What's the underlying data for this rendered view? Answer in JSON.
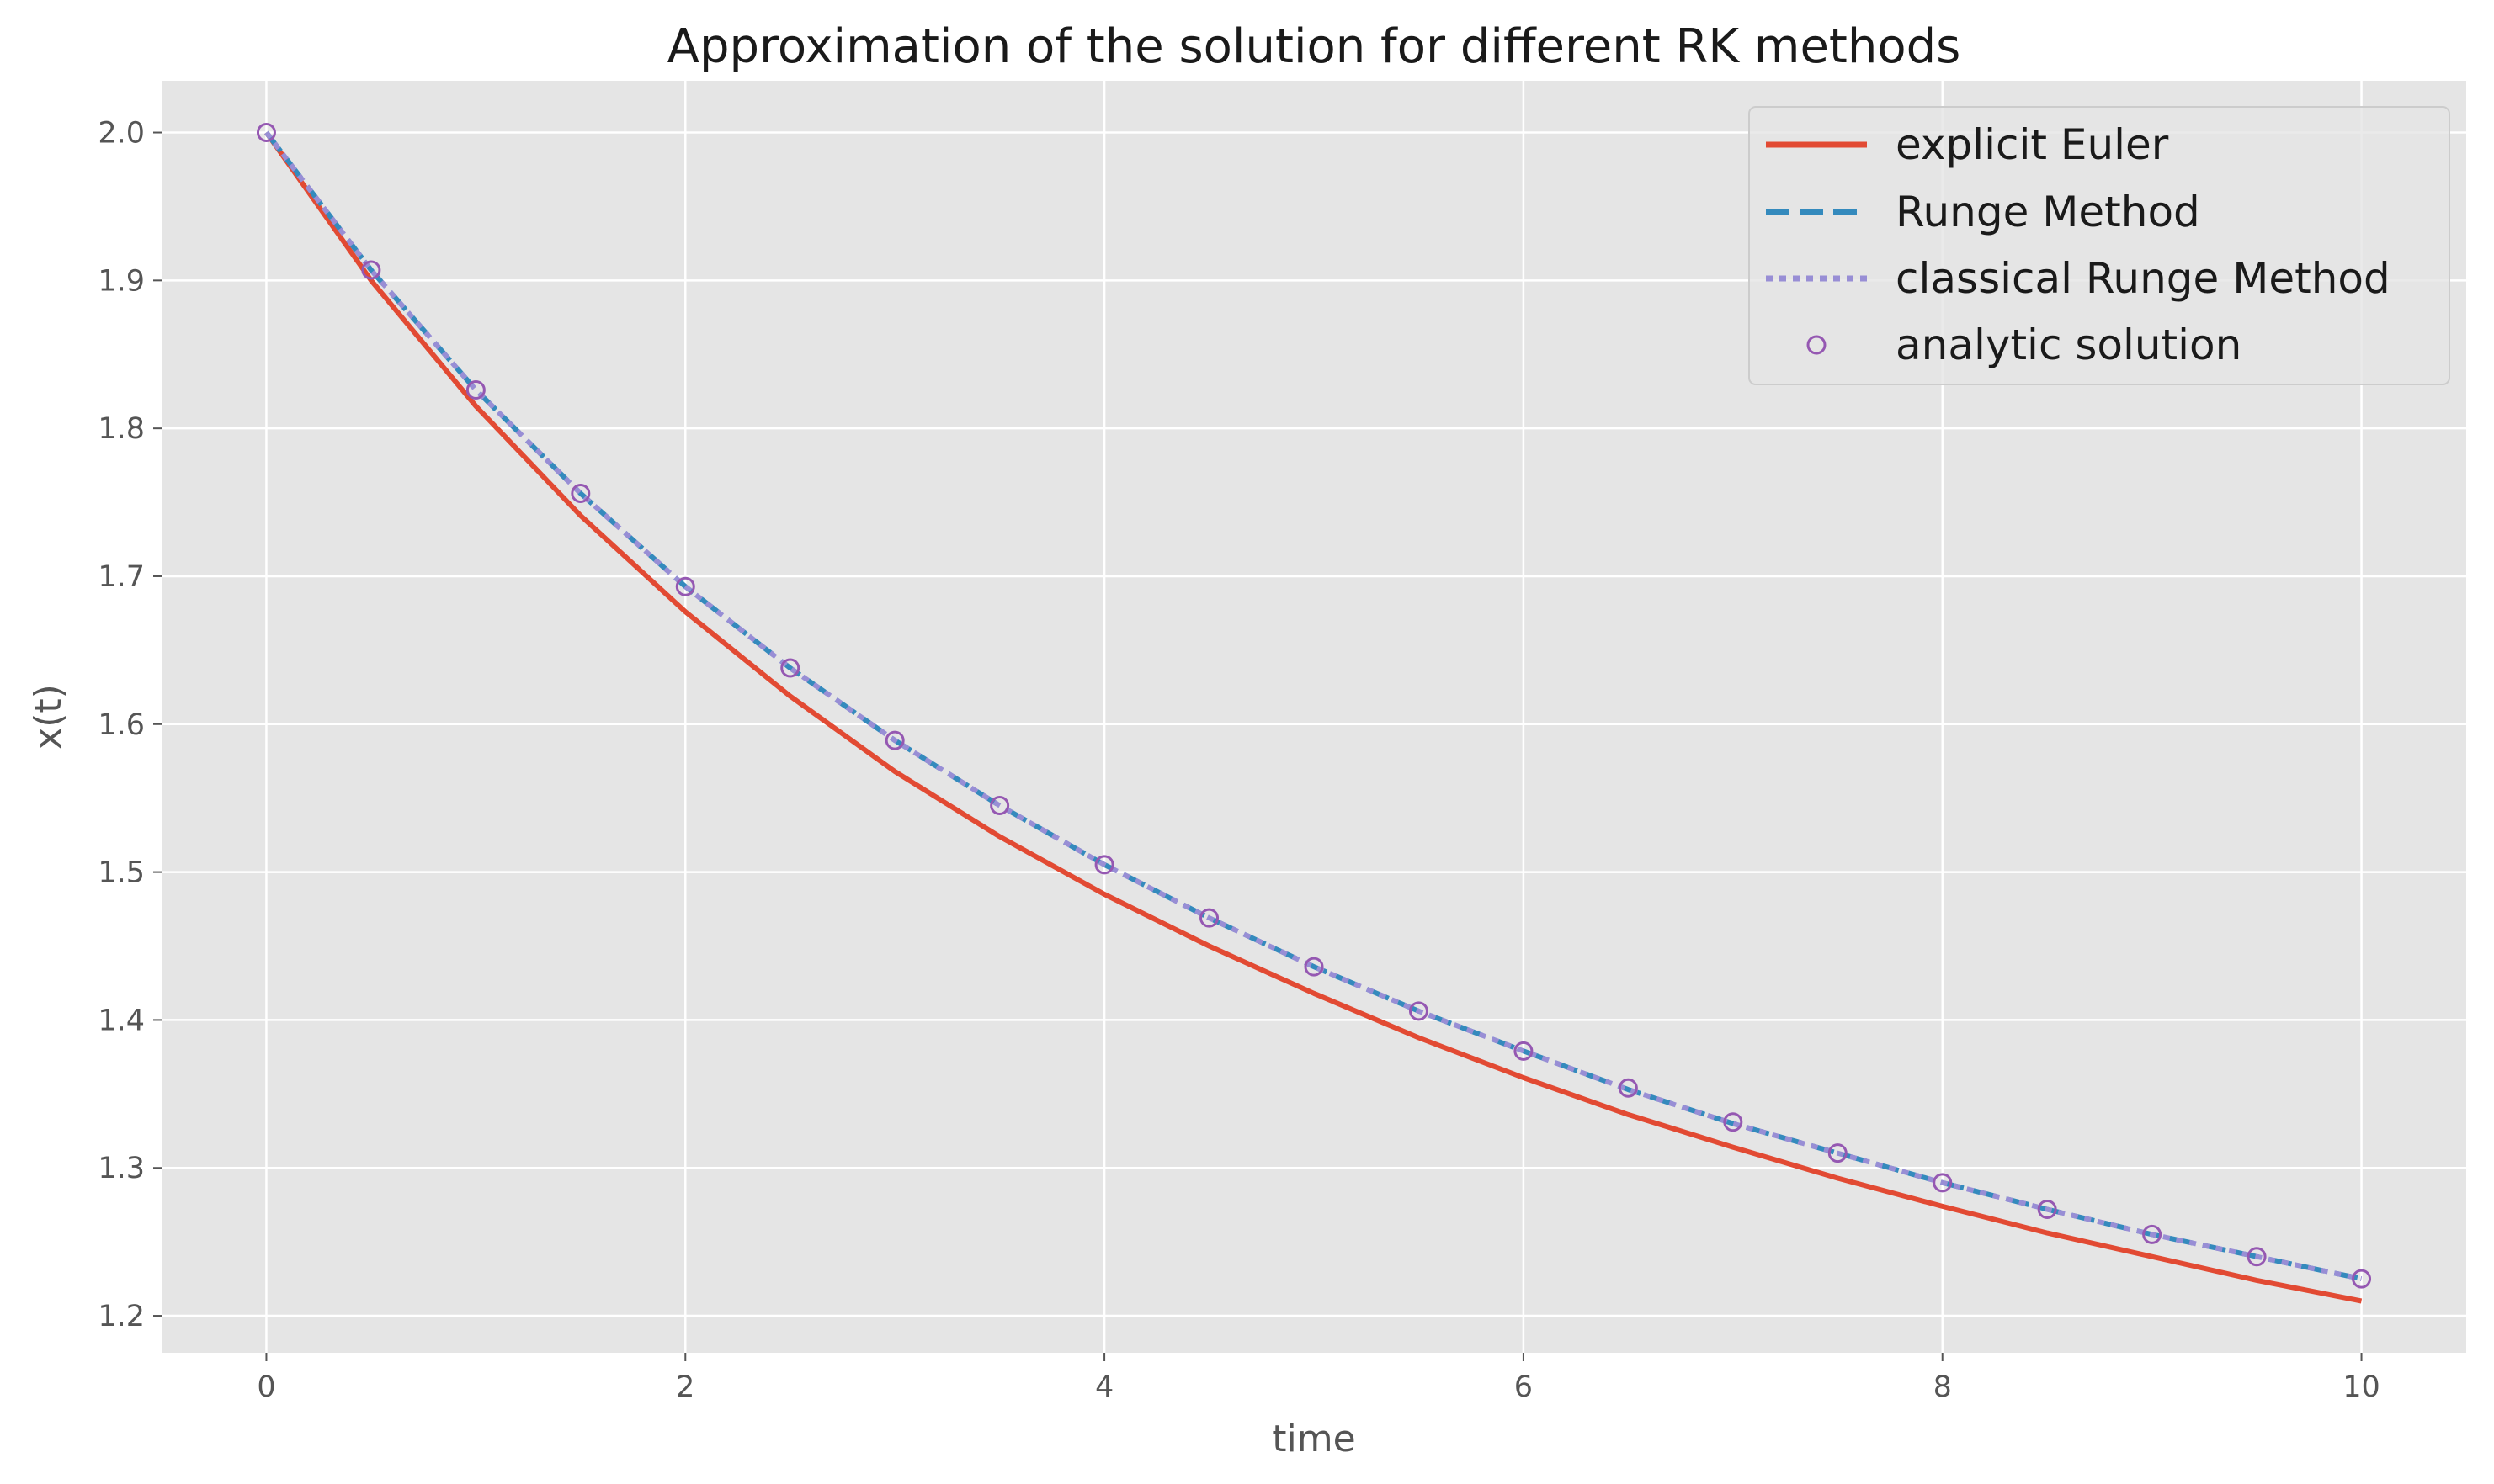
{
  "chart_data": {
    "type": "line",
    "title": "Approximation of the solution for different RK methods",
    "xlabel": "time",
    "ylabel": "x(t)",
    "xlim": [
      -0.5,
      10.5
    ],
    "ylim": [
      1.175,
      2.035
    ],
    "xticks": [
      0,
      2,
      4,
      6,
      8,
      10
    ],
    "xtick_labels": [
      "0",
      "2",
      "4",
      "6",
      "8",
      "10"
    ],
    "yticks": [
      1.2,
      1.3,
      1.4,
      1.5,
      1.6,
      1.7,
      1.8,
      1.9,
      2.0
    ],
    "ytick_labels": [
      "1.2",
      "1.3",
      "1.4",
      "1.5",
      "1.6",
      "1.7",
      "1.8",
      "1.9",
      "2.0"
    ],
    "grid": true,
    "legend_position": "top-right",
    "x": [
      0,
      0.5,
      1,
      1.5,
      2,
      2.5,
      3,
      3.5,
      4,
      4.5,
      5,
      5.5,
      6,
      6.5,
      7,
      7.5,
      8,
      8.5,
      9,
      9.5,
      10
    ],
    "series": [
      {
        "name": "explicit Euler",
        "style": "solid",
        "color": "#E24A33",
        "values": [
          2.0,
          1.9,
          1.815,
          1.741,
          1.676,
          1.619,
          1.568,
          1.524,
          1.485,
          1.45,
          1.418,
          1.388,
          1.361,
          1.336,
          1.314,
          1.293,
          1.274,
          1.256,
          1.24,
          1.224,
          1.21
        ]
      },
      {
        "name": "Runge Method",
        "style": "dashed",
        "color": "#348ABD",
        "values": [
          2.0,
          1.907,
          1.826,
          1.756,
          1.693,
          1.638,
          1.589,
          1.545,
          1.505,
          1.469,
          1.436,
          1.406,
          1.379,
          1.353,
          1.33,
          1.31,
          1.29,
          1.272,
          1.255,
          1.24,
          1.225
        ]
      },
      {
        "name": "classical Runge Method",
        "style": "dotted",
        "color": "#988ED5",
        "values": [
          2.0,
          1.907,
          1.826,
          1.756,
          1.693,
          1.638,
          1.589,
          1.545,
          1.505,
          1.469,
          1.436,
          1.406,
          1.379,
          1.353,
          1.33,
          1.31,
          1.29,
          1.272,
          1.255,
          1.24,
          1.225
        ]
      },
      {
        "name": "analytic solution",
        "style": "markers",
        "color": "#9558B2",
        "values": [
          2.0,
          1.907,
          1.826,
          1.756,
          1.693,
          1.638,
          1.589,
          1.545,
          1.505,
          1.469,
          1.436,
          1.406,
          1.379,
          1.354,
          1.331,
          1.31,
          1.29,
          1.272,
          1.255,
          1.24,
          1.225
        ]
      }
    ]
  }
}
